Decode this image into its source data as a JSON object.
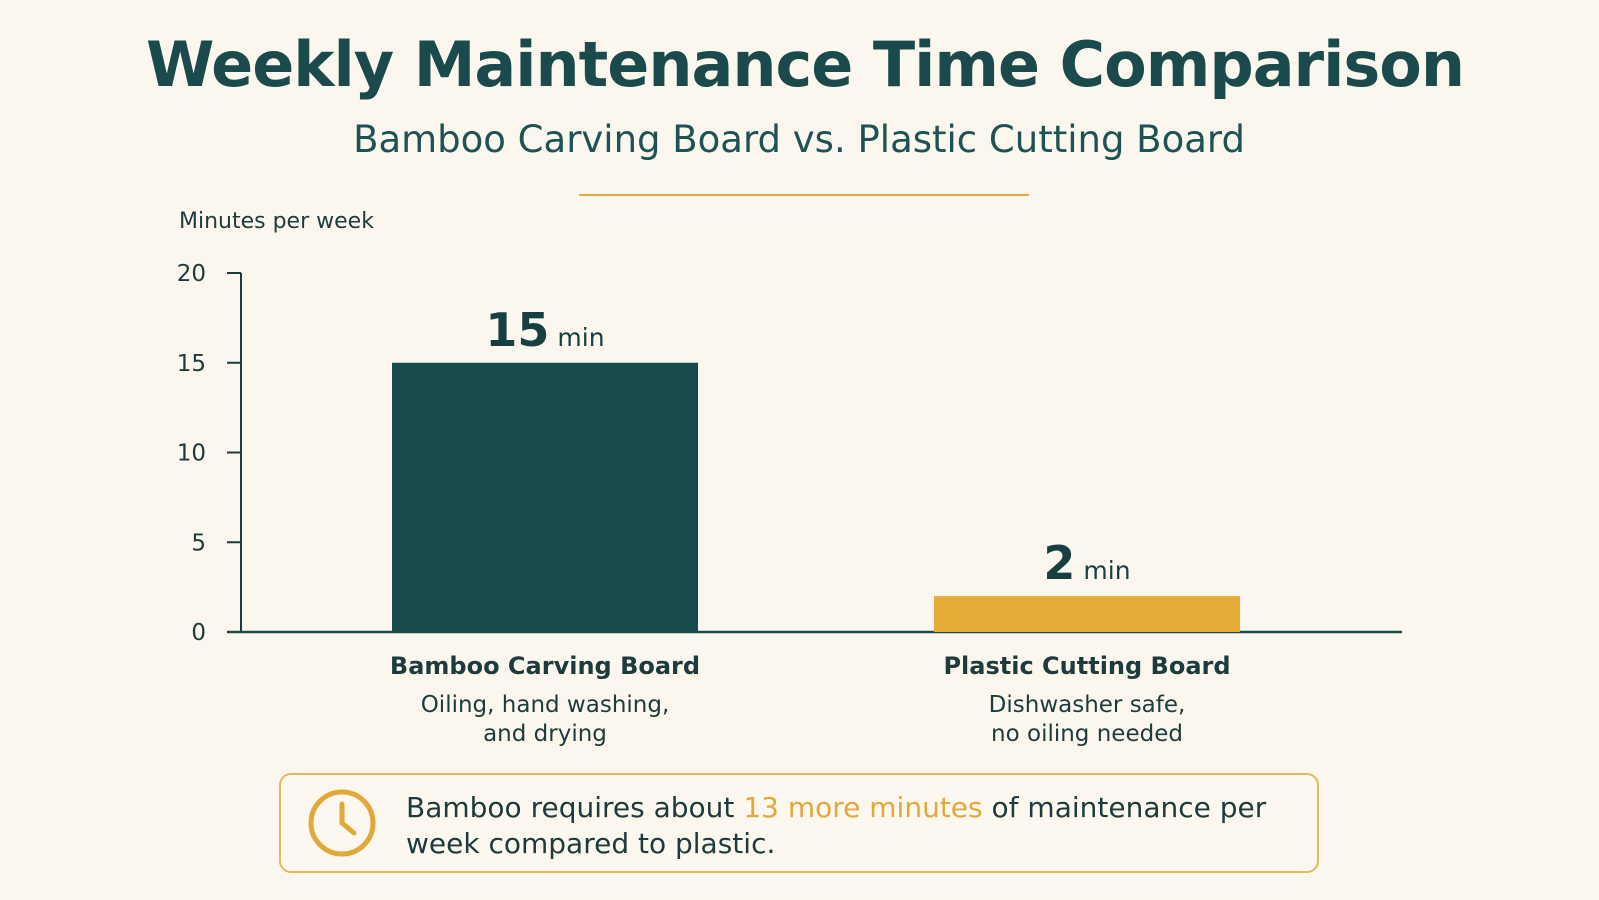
{
  "title": "Weekly Maintenance Time Comparison",
  "subtitle": "Bamboo Carving Board vs. Plastic Cutting Board",
  "colors": {
    "background": "#fbf7ee",
    "primary": "#174b4c",
    "accent": "#e6ac3a"
  },
  "chart_data": {
    "type": "bar",
    "title": "Weekly Maintenance Time Comparison",
    "subtitle": "Bamboo Carving Board vs. Plastic Cutting Board",
    "ylabel": "Minutes per week",
    "xlabel": "",
    "ylim": [
      0,
      20
    ],
    "yticks": [
      0,
      5,
      10,
      15,
      20
    ],
    "grid": false,
    "categories": [
      "Bamboo Carving Board",
      "Plastic Cutting Board"
    ],
    "descriptions": [
      [
        "Oiling, hand washing,",
        "and drying"
      ],
      [
        "Dishwasher safe,",
        "no oiling needed"
      ]
    ],
    "values": [
      15,
      2
    ],
    "value_unit": "min",
    "bar_colors": [
      "#174b4c",
      "#e6ac3a"
    ]
  },
  "callout": {
    "icon": "clock-icon",
    "text_before": "Bamboo requires about ",
    "highlight": "13 more minutes",
    "text_after": " of maintenance per week compared to plastic."
  }
}
